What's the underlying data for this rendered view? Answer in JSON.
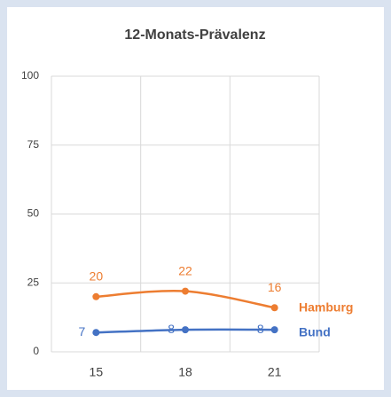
{
  "chart_data": {
    "type": "line",
    "title": "12-Monats-Prävalenz",
    "categories": [
      "15",
      "18",
      "21"
    ],
    "series": [
      {
        "name": "Hamburg",
        "color": "#ed7d31",
        "values": [
          20,
          22,
          16
        ]
      },
      {
        "name": "Bund",
        "color": "#4472c4",
        "values": [
          7,
          8,
          8
        ]
      }
    ],
    "ylim": [
      0,
      100
    ],
    "yticks": [
      0,
      25,
      50,
      75,
      100
    ],
    "grid": true,
    "smooth": true
  }
}
